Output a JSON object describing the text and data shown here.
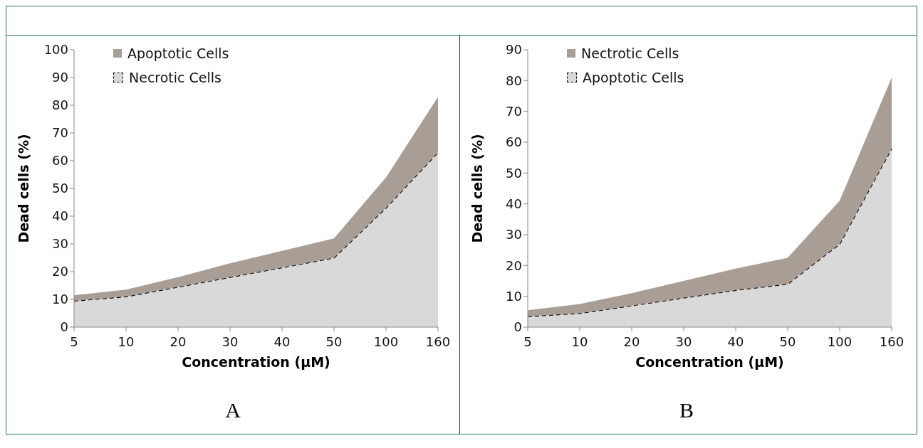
{
  "chart_data": [
    {
      "type": "area",
      "xlabel": "Concentration (μM)",
      "ylabel": "Dead cells (%)",
      "categories": [
        "5",
        "10",
        "20",
        "30",
        "40",
        "50",
        "100",
        "160"
      ],
      "stacked": true,
      "ylim": [
        0,
        100
      ],
      "yticks": [
        0,
        10,
        20,
        30,
        40,
        50,
        60,
        70,
        80,
        90,
        100
      ],
      "grid": false,
      "legend": "top left",
      "annotations": [
        "A"
      ],
      "series": [
        {
          "name": "Necrotic Cells",
          "color": "#d9d9d9",
          "line_style": "dashed",
          "values": [
            9.5,
            11,
            14.5,
            18,
            21.5,
            25,
            43,
            63
          ]
        },
        {
          "name": "Apoptotic Cells",
          "color": "#a89e96",
          "values": [
            2,
            2.5,
            3.5,
            5,
            6,
            7,
            11,
            20
          ]
        }
      ]
    },
    {
      "type": "area",
      "xlabel": "Concentration (μM)",
      "ylabel": "Dead cells (%)",
      "categories": [
        "5",
        "10",
        "20",
        "30",
        "40",
        "50",
        "100",
        "160"
      ],
      "stacked": true,
      "ylim": [
        0,
        90
      ],
      "yticks": [
        0,
        10,
        20,
        30,
        40,
        50,
        60,
        70,
        80,
        90
      ],
      "grid": false,
      "legend": "top left",
      "annotations": [
        "B"
      ],
      "series": [
        {
          "name": "Apoptotic Cells",
          "color": "#d9d9d9",
          "line_style": "dashed",
          "values": [
            3.5,
            4.5,
            7,
            9.5,
            12,
            14,
            27,
            58
          ]
        },
        {
          "name": "Nectrotic Cells",
          "color": "#a89e96",
          "values": [
            2,
            3,
            4,
            5.5,
            7,
            8.5,
            14,
            23
          ]
        }
      ]
    }
  ]
}
